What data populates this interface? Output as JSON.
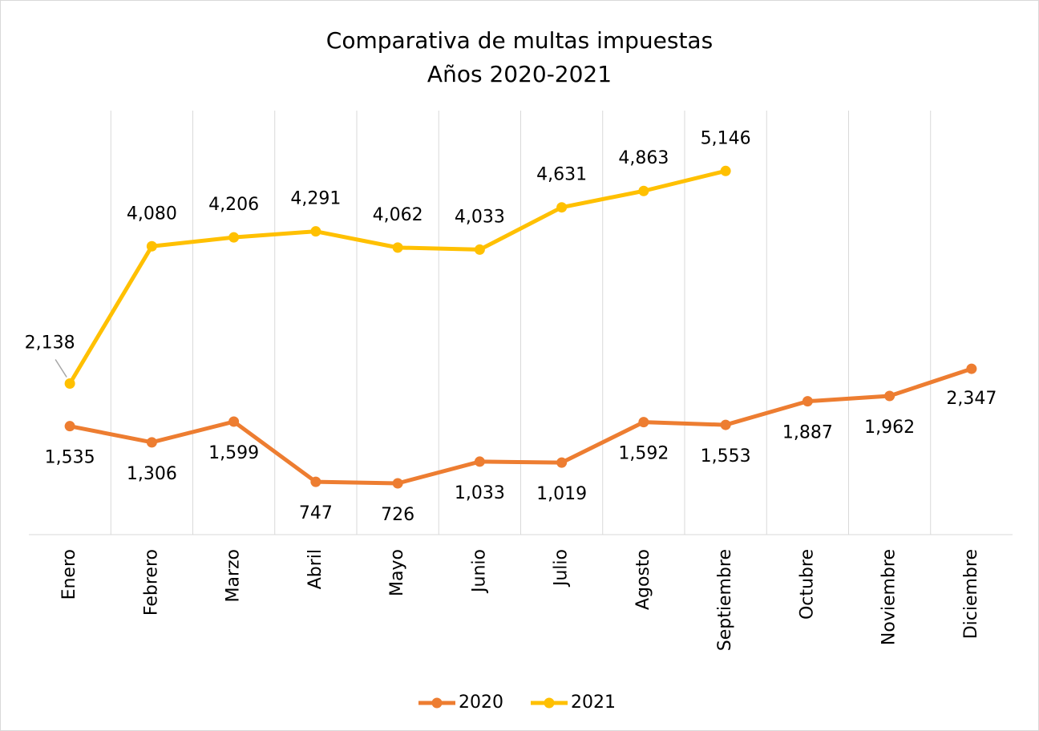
{
  "chart_data": {
    "type": "line",
    "title": "Comparativa de multas impuestas",
    "subtitle": "Años 2020-2021",
    "categories": [
      "Enero",
      "Febrero",
      "Marzo",
      "Abril",
      "Mayo",
      "Junio",
      "Julio",
      "Agosto",
      "Septiembre",
      "Octubre",
      "Noviembre",
      "Diciembre"
    ],
    "series": [
      {
        "name": "2020",
        "color": "#ED7D31",
        "values": [
          1535,
          1306,
          1599,
          747,
          726,
          1033,
          1019,
          1592,
          1553,
          1887,
          1962,
          2347
        ],
        "value_labels": [
          "1,535",
          "1,306",
          "1,599",
          "747",
          "726",
          "1,033",
          "1,019",
          "1,592",
          "1,553",
          "1,887",
          "1,962",
          "2,347"
        ]
      },
      {
        "name": "2021",
        "color": "#FFC000",
        "values": [
          2138,
          4080,
          4206,
          4291,
          4062,
          4033,
          4631,
          4863,
          5146,
          null,
          null,
          null
        ],
        "value_labels": [
          "2,138",
          "4,080",
          "4,206",
          "4,291",
          "4,062",
          "4,033",
          "4,631",
          "4,863",
          "5,146",
          null,
          null,
          null
        ]
      }
    ],
    "ylim": [
      0,
      6000
    ],
    "grid": true,
    "legend": "bottom"
  }
}
